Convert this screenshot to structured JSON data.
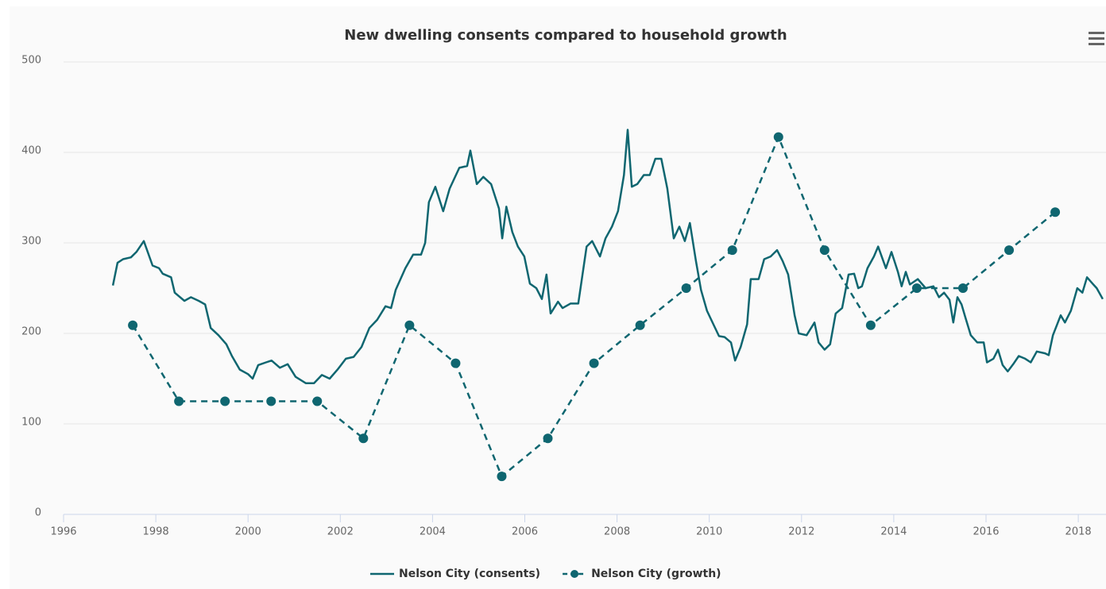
{
  "chart_data": {
    "type": "line",
    "title": "New dwelling consents compared to household growth",
    "xlim": [
      1996,
      2018.6
    ],
    "xticks": [
      1996,
      1998,
      2000,
      2002,
      2004,
      2006,
      2008,
      2010,
      2012,
      2014,
      2016,
      2018
    ],
    "ylim": [
      0,
      500
    ],
    "yticks": [
      0,
      100,
      200,
      300,
      400,
      500
    ],
    "grid": true,
    "legend": "bottom",
    "series": [
      {
        "name": "Nelson City (consents)",
        "color": "#0f6670",
        "line_style": "solid",
        "markers": false,
        "x": [
          1997.07,
          1997.17,
          1997.29,
          1997.46,
          1997.58,
          1997.74,
          1997.93,
          1998.07,
          1998.15,
          1998.33,
          1998.41,
          1998.62,
          1998.76,
          1998.93,
          1999.07,
          1999.19,
          1999.36,
          1999.53,
          1999.65,
          1999.82,
          2000.0,
          2000.1,
          2000.22,
          2000.39,
          2000.51,
          2000.69,
          2000.86,
          2001.03,
          2001.25,
          2001.43,
          2001.6,
          2001.77,
          2001.94,
          2002.12,
          2002.29,
          2002.46,
          2002.63,
          2002.8,
          2002.98,
          2003.1,
          2003.2,
          2003.41,
          2003.58,
          2003.75,
          2003.84,
          2003.92,
          2004.06,
          2004.23,
          2004.37,
          2004.58,
          2004.75,
          2004.82,
          2004.96,
          2005.1,
          2005.27,
          2005.44,
          2005.51,
          2005.6,
          2005.73,
          2005.85,
          2005.99,
          2006.11,
          2006.25,
          2006.37,
          2006.47,
          2006.56,
          2006.72,
          2006.82,
          2006.99,
          2007.16,
          2007.34,
          2007.46,
          2007.63,
          2007.75,
          2007.89,
          2008.02,
          2008.15,
          2008.23,
          2008.32,
          2008.44,
          2008.58,
          2008.71,
          2008.83,
          2008.96,
          2009.09,
          2009.23,
          2009.35,
          2009.47,
          2009.58,
          2009.71,
          2009.82,
          2009.95,
          2010.09,
          2010.21,
          2010.33,
          2010.47,
          2010.56,
          2010.68,
          2010.82,
          2010.9,
          2011.07,
          2011.19,
          2011.33,
          2011.47,
          2011.59,
          2011.71,
          2011.85,
          2011.94,
          2012.11,
          2012.28,
          2012.37,
          2012.5,
          2012.62,
          2012.74,
          2012.88,
          2013.02,
          2013.14,
          2013.23,
          2013.31,
          2013.43,
          2013.57,
          2013.66,
          2013.83,
          2013.95,
          2014.09,
          2014.17,
          2014.26,
          2014.35,
          2014.52,
          2014.69,
          2014.86,
          2014.98,
          2015.09,
          2015.21,
          2015.29,
          2015.38,
          2015.47,
          2015.55,
          2015.67,
          2015.81,
          2015.95,
          2016.02,
          2016.16,
          2016.26,
          2016.36,
          2016.47,
          2016.59,
          2016.71,
          2016.85,
          2016.97,
          2017.1,
          2017.28,
          2017.36,
          2017.45,
          2017.62,
          2017.71,
          2017.84,
          2017.98,
          2018.09,
          2018.19,
          2018.31,
          2018.4,
          2018.53
        ],
        "values": [
          253,
          278,
          282,
          284,
          290,
          302,
          275,
          272,
          266,
          262,
          245,
          236,
          240,
          236,
          232,
          206,
          198,
          188,
          175,
          160,
          155,
          150,
          165,
          168,
          170,
          162,
          166,
          152,
          145,
          145,
          154,
          150,
          160,
          172,
          174,
          185,
          206,
          215,
          230,
          228,
          248,
          272,
          287,
          287,
          300,
          345,
          362,
          335,
          360,
          383,
          385,
          402,
          365,
          373,
          365,
          338,
          305,
          340,
          312,
          296,
          285,
          255,
          250,
          238,
          265,
          222,
          235,
          228,
          233,
          233,
          296,
          302,
          285,
          305,
          318,
          335,
          375,
          425,
          362,
          365,
          375,
          375,
          393,
          393,
          360,
          305,
          318,
          302,
          322,
          280,
          248,
          225,
          210,
          197,
          196,
          190,
          170,
          185,
          210,
          260,
          260,
          282,
          285,
          292,
          280,
          265,
          220,
          200,
          198,
          212,
          190,
          182,
          188,
          222,
          228,
          265,
          266,
          250,
          252,
          272,
          285,
          296,
          272,
          290,
          268,
          252,
          268,
          254,
          260,
          250,
          252,
          240,
          245,
          237,
          212,
          240,
          232,
          218,
          198,
          190,
          190,
          168,
          172,
          182,
          165,
          158,
          166,
          175,
          172,
          168,
          180,
          178,
          176,
          198,
          220,
          212,
          225,
          250,
          245,
          262,
          255,
          250,
          238
        ]
      },
      {
        "name": "Nelson City (growth)",
        "color": "#0f6670",
        "line_style": "dashed",
        "markers": true,
        "x": [
          1997.5,
          1998.5,
          1999.5,
          2000.5,
          2001.5,
          2002.5,
          2003.5,
          2004.5,
          2005.5,
          2006.5,
          2007.5,
          2008.5,
          2009.5,
          2010.5,
          2011.5,
          2012.5,
          2013.5,
          2014.5,
          2015.5,
          2016.5,
          2017.5
        ],
        "values": [
          209,
          125,
          125,
          125,
          125,
          84,
          209,
          167,
          42,
          84,
          167,
          209,
          250,
          292,
          417,
          292,
          209,
          250,
          250,
          292,
          334
        ]
      }
    ]
  }
}
